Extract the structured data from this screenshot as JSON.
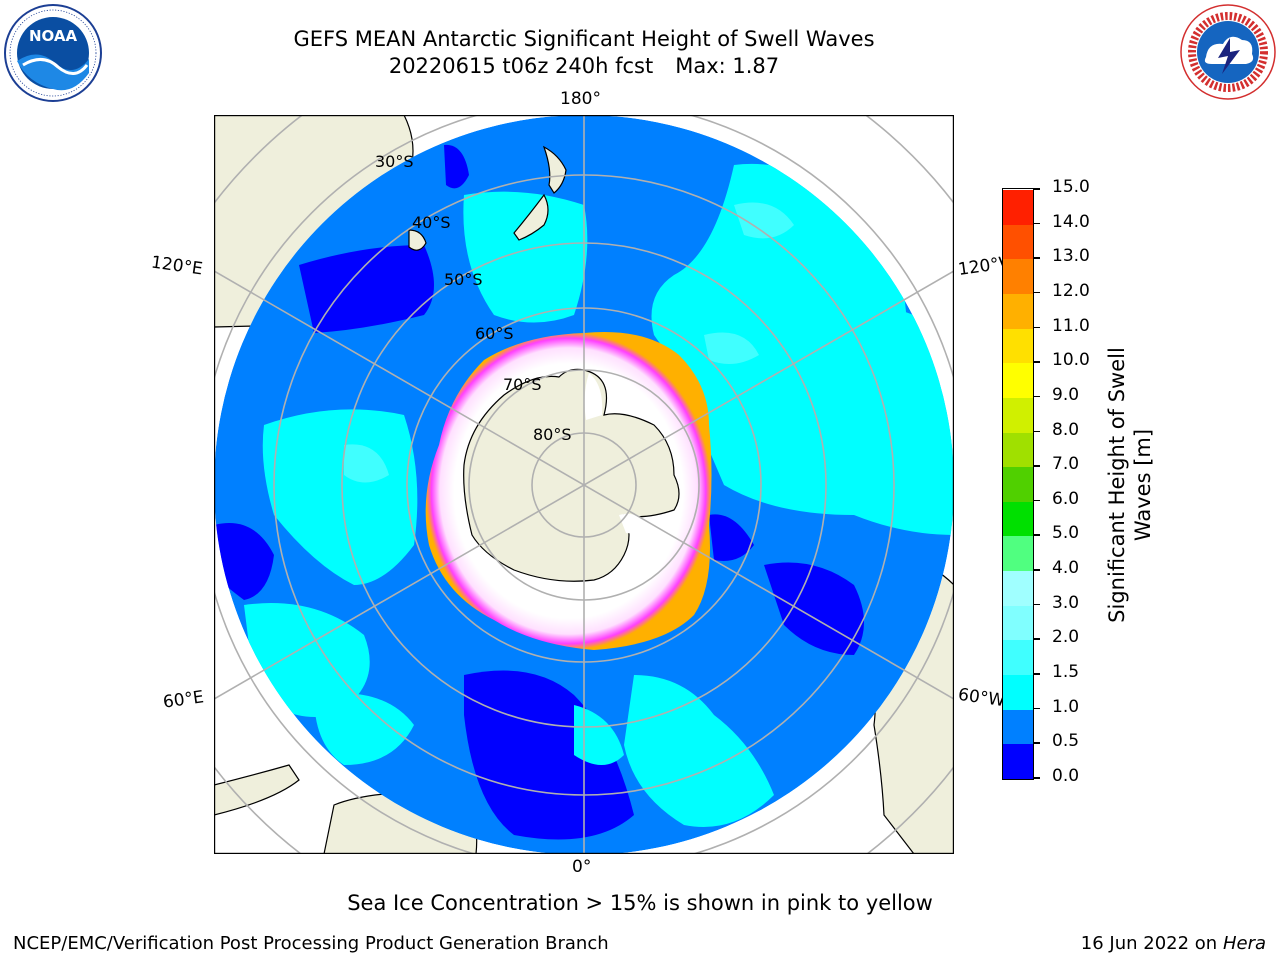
{
  "header": {
    "title_line1": "GEFS MEAN Antarctic Significant Height of Swell Waves",
    "title_run": "20220615 t06z 240h fcst",
    "title_max": "Max: 1.87"
  },
  "logos": {
    "left": {
      "icon": "noaa-logo-icon",
      "text": "NOAA",
      "ring_text": "NATIONAL OCEANIC AND ATMOSPHERIC ADMINISTRATION · U.S. DEPARTMENT OF COMMERCE"
    },
    "right": {
      "icon": "national-weather-service-logo-icon",
      "ring_text": "NATIONAL WEATHER SERVICE"
    }
  },
  "map": {
    "projection": "south-polar-stereographic",
    "longitude_labels": {
      "top": "180°",
      "bottom": "0°",
      "upper_left": "120°E",
      "upper_right": "120°W",
      "lower_left": "60°E",
      "lower_right": "60°W"
    },
    "latitude_labels": [
      "30°S",
      "40°S",
      "50°S",
      "60°S",
      "70°S",
      "80°S"
    ],
    "colors": {
      "land": "#efefdc",
      "ocean_0_0_5": "#0000ff",
      "ocean_0_5_1_0": "#0080ff",
      "ocean_1_0_1_5": "#00ffff",
      "ocean_1_5_2_0": "#40ffff",
      "sea_ice_low": "#ff00ff",
      "sea_ice_high": "#ffd000",
      "gridlines": "#b0b0b0",
      "coastline": "#000000"
    }
  },
  "colorbar": {
    "label_line1": "Significant Height of Swell",
    "label_line2": "Waves [m]",
    "ticks": [
      "0.0",
      "0.5",
      "1.0",
      "1.5",
      "2.0",
      "3.0",
      "4.0",
      "5.0",
      "6.0",
      "7.0",
      "8.0",
      "9.0",
      "10.0",
      "11.0",
      "12.0",
      "13.0",
      "14.0",
      "15.0"
    ],
    "colors": [
      "#0000ff",
      "#0080ff",
      "#00ffff",
      "#40ffff",
      "#80ffff",
      "#a0ffff",
      "#50ff80",
      "#00e000",
      "#50d000",
      "#a0e000",
      "#d0f000",
      "#ffff00",
      "#ffe000",
      "#ffb000",
      "#ff8000",
      "#ff5000",
      "#ff2000",
      "#ff0000"
    ]
  },
  "footer": {
    "note": "Sea Ice Concentration > 15% is shown in pink to yellow",
    "credit": "NCEP/EMC/Verification Post Processing Product Generation Branch",
    "date": "16 Jun 2022 on",
    "machine": "Hera"
  }
}
